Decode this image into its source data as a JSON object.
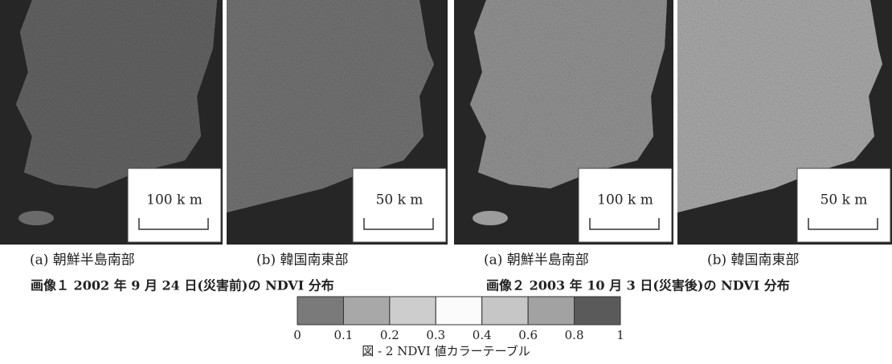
{
  "panels": [
    {
      "scale": "100 k m",
      "label": "(a) 朝鮮半島南部"
    },
    {
      "scale": "50 k m",
      "label": "(b)  韓国南東部"
    },
    {
      "scale": "100 k m",
      "label": "(a) 朝鮮半島南部"
    },
    {
      "scale": "50 k m",
      "label": "(b)  韓国南東部"
    }
  ],
  "captions": [
    "画像１ 2002 年 9 月 24 日(災害前)の NDVI 分布",
    "画像２ 2003 年 10 月 3 日(災害後)の NDVI 分布"
  ],
  "color_table": {
    "colors": [
      "#7a7a7a",
      "#a8a8a8",
      "#cdcdcd",
      "#fbfbfb",
      "#c6c6c6",
      "#a2a2a2",
      "#5a5a5a"
    ],
    "ticks": [
      "0",
      "0.1",
      "0.2",
      "0.3",
      "0.4",
      "0.6",
      "0.8",
      "1"
    ],
    "caption": "図 - 2  NDVI 値カラーテーブル"
  }
}
